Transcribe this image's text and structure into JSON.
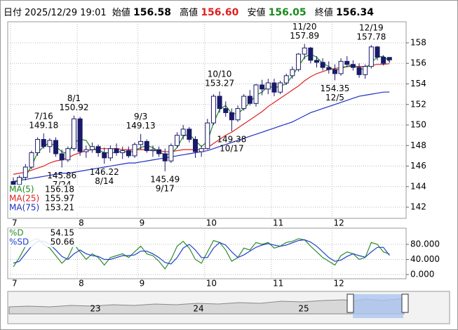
{
  "header": {
    "date_label": "日付",
    "datetime": "2025/12/29 19:01",
    "open_label": "始値",
    "open": "156.58",
    "high_label": "高値",
    "high": "156.60",
    "low_label": "安値",
    "low": "156.05",
    "close_label": "終値",
    "close": "156.34"
  },
  "chart_data": [
    {
      "type": "candlestick",
      "categories": [
        "7",
        null,
        null,
        null,
        null,
        null,
        null,
        null,
        null,
        null,
        null,
        "8",
        null,
        null,
        null,
        null,
        null,
        null,
        null,
        null,
        null,
        "9",
        null,
        null,
        null,
        null,
        null,
        null,
        null,
        null,
        null,
        null,
        "10",
        null,
        null,
        null,
        null,
        null,
        null,
        null,
        null,
        null,
        null,
        "11",
        null,
        null,
        null,
        null,
        null,
        null,
        null,
        null,
        null,
        "12",
        null,
        null,
        null,
        null,
        null,
        null,
        null,
        null,
        null
      ],
      "values": [
        [
          144.5,
          144.9,
          143.9,
          144.2
        ],
        [
          144.2,
          145.1,
          143.8,
          144.9
        ],
        [
          144.9,
          146.2,
          144.6,
          145.9
        ],
        [
          145.9,
          147.5,
          145.7,
          147.3
        ],
        [
          147.3,
          148.8,
          147.0,
          148.6
        ],
        [
          148.6,
          149.18,
          147.7,
          147.9
        ],
        [
          147.9,
          148.7,
          147.3,
          148.5
        ],
        [
          148.5,
          148.8,
          146.9,
          147.2
        ],
        [
          147.2,
          147.6,
          145.86,
          146.6
        ],
        [
          146.6,
          147.9,
          146.4,
          147.7
        ],
        [
          147.7,
          150.92,
          147.5,
          150.6
        ],
        [
          150.6,
          150.8,
          147.0,
          147.4
        ],
        [
          147.4,
          148.0,
          146.8,
          147.6
        ],
        [
          147.6,
          148.3,
          147.3,
          147.9
        ],
        [
          147.9,
          148.1,
          146.9,
          147.3
        ],
        [
          147.3,
          147.8,
          146.22,
          146.8
        ],
        [
          146.8,
          148.0,
          146.5,
          147.7
        ],
        [
          147.7,
          148.2,
          147.0,
          147.3
        ],
        [
          147.3,
          147.9,
          146.7,
          147.5
        ],
        [
          147.5,
          147.9,
          146.8,
          147.0
        ],
        [
          147.0,
          148.3,
          146.8,
          148.1
        ],
        [
          148.1,
          149.13,
          147.6,
          148.4
        ],
        [
          148.4,
          148.6,
          147.3,
          147.5
        ],
        [
          147.5,
          148.0,
          146.9,
          147.6
        ],
        [
          147.6,
          147.9,
          146.9,
          147.2
        ],
        [
          147.2,
          147.7,
          145.49,
          146.5
        ],
        [
          146.5,
          148.2,
          146.3,
          148.0
        ],
        [
          148.0,
          149.3,
          147.8,
          149.0
        ],
        [
          149.0,
          150.0,
          148.6,
          149.6
        ],
        [
          149.6,
          149.8,
          148.3,
          148.6
        ],
        [
          148.6,
          148.9,
          146.8,
          147.4
        ],
        [
          147.4,
          148.0,
          146.9,
          147.7
        ],
        [
          147.7,
          150.6,
          147.6,
          150.2
        ],
        [
          150.2,
          153.0,
          150.0,
          152.8
        ],
        [
          152.8,
          153.27,
          151.2,
          151.6
        ],
        [
          151.6,
          152.3,
          150.8,
          151.2
        ],
        [
          151.2,
          151.6,
          149.38,
          150.5
        ],
        [
          150.5,
          151.9,
          150.3,
          151.6
        ],
        [
          151.6,
          153.0,
          151.4,
          152.8
        ],
        [
          152.8,
          153.4,
          151.9,
          152.1
        ],
        [
          152.1,
          154.0,
          151.8,
          153.9
        ],
        [
          153.9,
          154.4,
          152.9,
          153.5
        ],
        [
          153.5,
          154.5,
          153.0,
          154.1
        ],
        [
          154.1,
          154.5,
          152.8,
          153.2
        ],
        [
          153.2,
          154.3,
          153.0,
          154.1
        ],
        [
          154.1,
          155.0,
          153.9,
          154.8
        ],
        [
          154.8,
          155.7,
          154.5,
          155.4
        ],
        [
          155.4,
          157.0,
          155.2,
          156.9
        ],
        [
          156.9,
          157.89,
          156.4,
          157.5
        ],
        [
          157.5,
          157.6,
          156.0,
          156.3
        ],
        [
          156.3,
          156.7,
          155.6,
          156.1
        ],
        [
          156.1,
          156.5,
          155.3,
          155.6
        ],
        [
          155.6,
          156.2,
          155.0,
          155.4
        ],
        [
          155.4,
          155.9,
          154.35,
          155.0
        ],
        [
          155.0,
          156.5,
          154.8,
          156.2
        ],
        [
          156.2,
          156.7,
          155.6,
          155.9
        ],
        [
          155.9,
          156.3,
          155.3,
          155.6
        ],
        [
          155.6,
          156.0,
          154.6,
          154.9
        ],
        [
          154.9,
          155.9,
          154.5,
          155.7
        ],
        [
          155.7,
          157.78,
          155.5,
          157.6
        ],
        [
          157.6,
          157.7,
          156.3,
          156.6
        ],
        [
          156.6,
          156.8,
          155.8,
          156.0
        ],
        [
          156.58,
          156.6,
          156.05,
          156.34
        ]
      ],
      "up_color": "#ffffff",
      "down_color": "#1a1a6a",
      "series": [
        {
          "name": "MA(5)",
          "color": "#1a8a1a",
          "values": [
            144.4,
            144.6,
            145.0,
            146.0,
            147.3,
            147.9,
            148.3,
            147.9,
            147.4,
            147.2,
            148.3,
            148.6,
            148.5,
            147.6,
            147.6,
            147.3,
            147.3,
            147.3,
            147.5,
            147.3,
            147.5,
            147.8,
            148.0,
            147.8,
            147.4,
            147.1,
            147.2,
            147.8,
            148.9,
            149.1,
            148.5,
            147.9,
            148.4,
            150.2,
            151.5,
            151.9,
            151.1,
            151.1,
            151.6,
            152.2,
            152.9,
            153.2,
            153.8,
            153.6,
            153.8,
            154.0,
            154.8,
            155.7,
            156.6,
            156.9,
            156.6,
            156.0,
            155.7,
            155.3,
            155.5,
            155.7,
            155.9,
            155.5,
            155.4,
            156.1,
            156.6,
            156.7,
            156.18
          ]
        },
        {
          "name": "MA(25)",
          "color": "#e02020",
          "values": [
            145.2,
            145.3,
            145.4,
            145.6,
            145.8,
            146.0,
            146.3,
            146.5,
            146.6,
            146.8,
            147.1,
            147.3,
            147.5,
            147.6,
            147.7,
            147.7,
            147.7,
            147.7,
            147.6,
            147.6,
            147.6,
            147.6,
            147.6,
            147.5,
            147.5,
            147.4,
            147.4,
            147.5,
            147.6,
            147.6,
            147.6,
            147.6,
            147.8,
            148.2,
            148.6,
            149.0,
            149.3,
            149.7,
            150.1,
            150.5,
            150.9,
            151.3,
            151.8,
            152.2,
            152.6,
            153.0,
            153.4,
            153.8,
            154.3,
            154.7,
            155.0,
            155.2,
            155.4,
            155.5,
            155.6,
            155.7,
            155.7,
            155.7,
            155.7,
            155.8,
            155.9,
            155.9,
            155.97
          ]
        },
        {
          "name": "MA(75)",
          "color": "#2030c0",
          "values": [
            144.5,
            144.6,
            144.7,
            144.8,
            144.9,
            145.0,
            145.1,
            145.2,
            145.3,
            145.3,
            145.4,
            145.5,
            145.6,
            145.7,
            145.8,
            145.9,
            146.0,
            146.1,
            146.2,
            146.3,
            146.3,
            146.4,
            146.5,
            146.6,
            146.7,
            146.8,
            146.9,
            147.0,
            147.1,
            147.2,
            147.3,
            147.4,
            147.5,
            147.7,
            147.9,
            148.1,
            148.3,
            148.5,
            148.7,
            148.9,
            149.1,
            149.3,
            149.5,
            149.7,
            149.9,
            150.1,
            150.3,
            150.6,
            150.9,
            151.2,
            151.4,
            151.6,
            151.8,
            152.0,
            152.2,
            152.4,
            152.6,
            152.8,
            152.9,
            153.0,
            153.1,
            153.2,
            153.21
          ]
        }
      ],
      "annotations": [
        {
          "date": "7/16",
          "value": 149.18
        },
        {
          "date": "7/24",
          "value": 145.86
        },
        {
          "date": "8/1",
          "value": 150.92
        },
        {
          "date": "8/14",
          "value": 146.22
        },
        {
          "date": "9/3",
          "value": 149.13
        },
        {
          "date": "9/17",
          "value": 145.49
        },
        {
          "date": "10/10",
          "value": 153.27
        },
        {
          "date": "10/17",
          "value": 149.38
        },
        {
          "date": "11/20",
          "value": 157.89
        },
        {
          "date": "12/5",
          "value": 154.35
        },
        {
          "date": "12/19",
          "value": 157.78
        }
      ],
      "ylim": [
        140.91,
        160.05
      ],
      "yticks": [
        142,
        144,
        146,
        148,
        150,
        152,
        154,
        156,
        158
      ],
      "grid": true
    },
    {
      "type": "line",
      "series": [
        {
          "name": "%D",
          "color": "#2e8b2e",
          "values": [
            20,
            45,
            75,
            90,
            95,
            80,
            70,
            50,
            30,
            45,
            80,
            60,
            40,
            55,
            45,
            25,
            45,
            50,
            55,
            45,
            60,
            75,
            55,
            50,
            35,
            15,
            40,
            75,
            88,
            70,
            40,
            30,
            60,
            90,
            85,
            65,
            35,
            45,
            70,
            65,
            85,
            80,
            85,
            70,
            75,
            85,
            88,
            95,
            92,
            75,
            60,
            45,
            35,
            25,
            50,
            60,
            55,
            40,
            45,
            85,
            80,
            60,
            54.15
          ]
        },
        {
          "name": "%SD",
          "color": "#2040d0",
          "values": [
            30,
            35,
            55,
            75,
            88,
            88,
            80,
            65,
            48,
            40,
            55,
            65,
            55,
            50,
            48,
            40,
            40,
            45,
            50,
            50,
            52,
            62,
            62,
            55,
            45,
            32,
            28,
            45,
            70,
            80,
            65,
            45,
            45,
            70,
            85,
            78,
            60,
            45,
            52,
            62,
            72,
            78,
            82,
            78,
            75,
            78,
            84,
            90,
            92,
            86,
            75,
            60,
            45,
            35,
            38,
            48,
            55,
            50,
            46,
            60,
            72,
            72,
            50.66
          ]
        }
      ],
      "ylim": [
        -11.2,
        122.8
      ],
      "yticks": [
        {
          "value": 80,
          "label": "80.000"
        },
        {
          "value": 40,
          "label": "40.000"
        },
        {
          "value": 0,
          "label": "0.000"
        }
      ],
      "grid": true
    }
  ],
  "navigator": {
    "labels": [
      "23",
      "24",
      "25"
    ]
  }
}
